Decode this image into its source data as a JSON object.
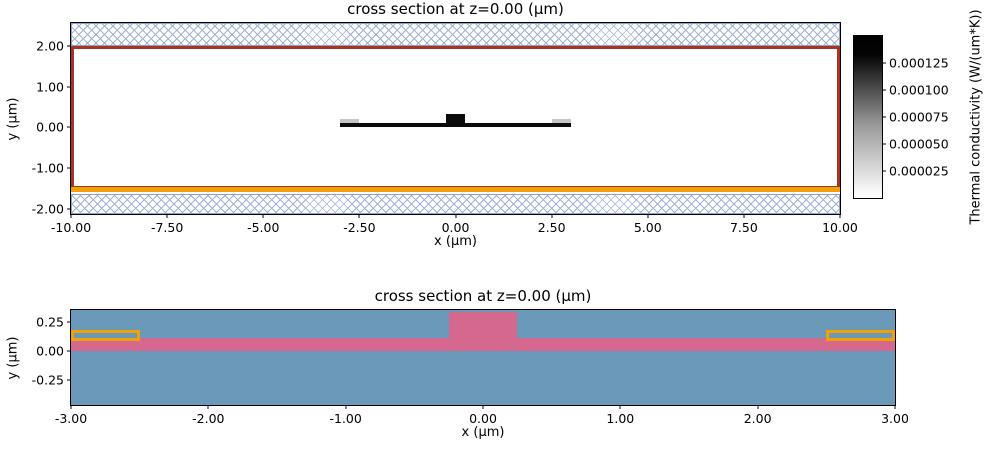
{
  "chart_data": [
    {
      "type": "heatmap",
      "name": "thermal-conductivity-cross-section",
      "title": "cross section at z=0.00 (μm)",
      "xlabel": "x (μm)",
      "ylabel": "y (μm)",
      "xlim": [
        -10,
        10
      ],
      "ylim": [
        -2.12,
        2.56
      ],
      "grid": false,
      "xticks": [
        {
          "v": -10,
          "label": "-10.00"
        },
        {
          "v": -7.5,
          "label": "-7.50"
        },
        {
          "v": -5,
          "label": "-5.00"
        },
        {
          "v": -2.5,
          "label": "-2.50"
        },
        {
          "v": 0,
          "label": "0.00"
        },
        {
          "v": 2.5,
          "label": "2.50"
        },
        {
          "v": 5,
          "label": "5.00"
        },
        {
          "v": 7.5,
          "label": "7.50"
        },
        {
          "v": 10,
          "label": "10.00"
        }
      ],
      "yticks": [
        {
          "v": 2,
          "label": "2.00"
        },
        {
          "v": 1,
          "label": "1.00"
        },
        {
          "v": 0,
          "label": "0.00"
        },
        {
          "v": -1,
          "label": "-1.00"
        },
        {
          "v": -2,
          "label": "-2.00"
        }
      ],
      "colorbar": {
        "label": "Thermal conductivity (W/(um*K))",
        "lim": [
          0,
          0.00015
        ],
        "cmap": [
          "#ffffff",
          "#000000"
        ],
        "ticks": [
          {
            "v": 0.000125,
            "label": "0.000125"
          },
          {
            "v": 0.0001,
            "label": "0.000100"
          },
          {
            "v": 7.5e-05,
            "label": "0.000075"
          },
          {
            "v": 5e-05,
            "label": "0.000050"
          },
          {
            "v": 2.5e-05,
            "label": "0.000025"
          }
        ]
      },
      "regions": [
        {
          "name": "boundary-hatch-top",
          "x": [
            -10,
            10
          ],
          "y": [
            2.0,
            2.56
          ],
          "hatch": true
        },
        {
          "name": "boundary-hatch-bottom",
          "x": [
            -10,
            10
          ],
          "y": [
            -2.12,
            -1.62
          ],
          "hatch": true
        },
        {
          "name": "simulation-domain-outline",
          "x": [
            -10,
            10
          ],
          "y": [
            -1.5,
            2.0
          ],
          "stroke": "#a93226",
          "strokeWidth": 3
        },
        {
          "name": "heat-source-line",
          "x": [
            -10,
            10
          ],
          "y": [
            -1.57,
            -1.46
          ],
          "fill": "#f2a104"
        },
        {
          "name": "electrode-left-low-conductivity",
          "x": [
            -3.0,
            -2.5
          ],
          "y": [
            0.1,
            0.2
          ],
          "fill": "#c6c6c6"
        },
        {
          "name": "electrode-right-low-conductivity",
          "x": [
            2.5,
            3.0
          ],
          "y": [
            0.1,
            0.2
          ],
          "fill": "#c6c6c6"
        },
        {
          "name": "waveguide-slab-high-conductivity",
          "x": [
            -3,
            3
          ],
          "y": [
            0,
            0.11
          ],
          "fill": "#0b0b0b"
        },
        {
          "name": "waveguide-ridge-high-conductivity",
          "x": [
            -0.25,
            0.25
          ],
          "y": [
            0,
            0.33
          ],
          "fill": "#0b0b0b"
        }
      ]
    },
    {
      "type": "heatmap",
      "name": "material-structure-cross-section",
      "title": "cross section at z=0.00 (μm)",
      "xlabel": "x (μm)",
      "ylabel": "y (μm)",
      "xlim": [
        -3,
        3
      ],
      "ylim": [
        -0.46,
        0.35
      ],
      "grid": false,
      "xticks": [
        {
          "v": -3,
          "label": "-3.00"
        },
        {
          "v": -2,
          "label": "-2.00"
        },
        {
          "v": -1,
          "label": "-1.00"
        },
        {
          "v": 0,
          "label": "0.00"
        },
        {
          "v": 1,
          "label": "1.00"
        },
        {
          "v": 2,
          "label": "2.00"
        },
        {
          "v": 3,
          "label": "3.00"
        }
      ],
      "yticks": [
        {
          "v": 0.25,
          "label": "0.25"
        },
        {
          "v": 0,
          "label": "0.00"
        },
        {
          "v": -0.25,
          "label": "-0.25"
        }
      ],
      "regions": [
        {
          "name": "oxide-background",
          "x": [
            -3,
            3
          ],
          "y": [
            -0.46,
            0.35
          ],
          "fill": "#6a99ba"
        },
        {
          "name": "silicon-slab-layer",
          "x": [
            -3,
            3
          ],
          "y": [
            0,
            0.11
          ],
          "fill": "#d4688f"
        },
        {
          "name": "silicon-waveguide-ridge",
          "x": [
            -0.25,
            0.25
          ],
          "y": [
            0,
            0.33
          ],
          "fill": "#d4688f"
        },
        {
          "name": "heater-electrode-left",
          "x": [
            -3.0,
            -2.5
          ],
          "y": [
            0.085,
            0.18
          ],
          "stroke": "#f2a104",
          "strokeWidth": 3
        },
        {
          "name": "heater-electrode-right",
          "x": [
            2.5,
            3.0
          ],
          "y": [
            0.085,
            0.18
          ],
          "stroke": "#f2a104",
          "strokeWidth": 3
        }
      ]
    }
  ],
  "colors": {
    "boundary_hatch": "#9fb2d4",
    "domain_outline": "#a93226",
    "heater_orange": "#f2a104",
    "waveguide_black": "#0b0b0b",
    "oxide_blue": "#6a99ba",
    "silicon_pink": "#d4688f"
  }
}
